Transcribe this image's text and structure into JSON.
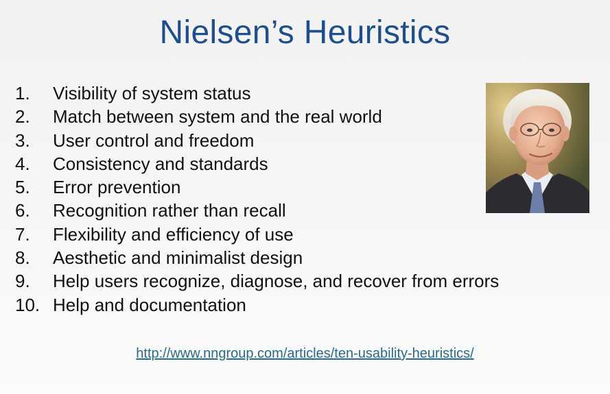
{
  "slide": {
    "title": "Nielsen’s Heuristics",
    "heuristics": [
      {
        "num": "1.",
        "text": "Visibility of system status"
      },
      {
        "num": "2.",
        "text": "Match between system and the real world"
      },
      {
        "num": "3.",
        "text": "User control and freedom"
      },
      {
        "num": "4.",
        "text": "Consistency and standards"
      },
      {
        "num": "5.",
        "text": "Error prevention"
      },
      {
        "num": "6.",
        "text": "Recognition rather than recall"
      },
      {
        "num": "7.",
        "text": "Flexibility and efficiency of use"
      },
      {
        "num": "8.",
        "text": "Aesthetic and minimalist design"
      },
      {
        "num": "9.",
        "text": "Help users recognize, diagnose, and recover from errors"
      },
      {
        "num": "10.",
        "text": "Help and documentation"
      }
    ],
    "link": "http://www.nngroup.com/articles/ten-usability-heuristics/"
  },
  "colors": {
    "title": "#1f4e8c",
    "link": "#2a6a8a"
  }
}
